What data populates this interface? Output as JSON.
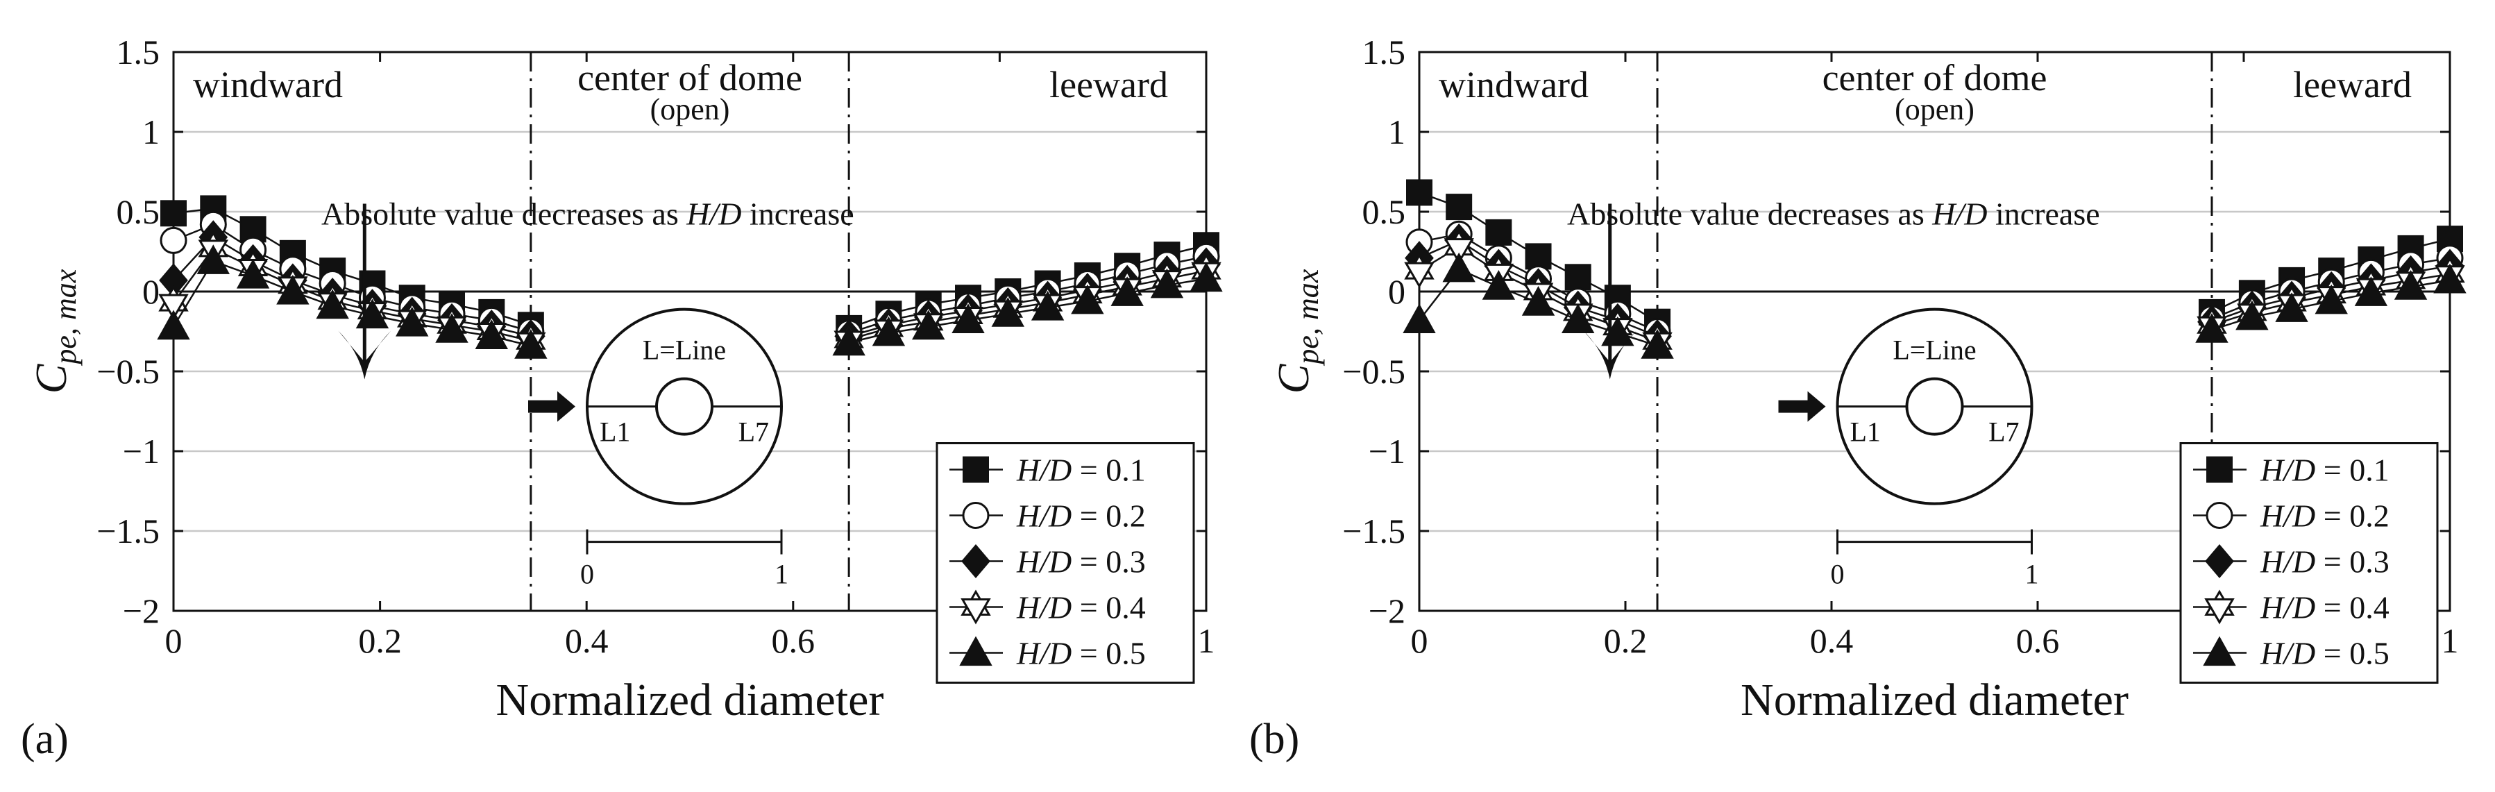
{
  "chart_data": [
    {
      "panel_label": "(a)",
      "type": "line",
      "xlabel": "Normalized diameter",
      "ylabel": "C",
      "ylabel_sub": "pe, max",
      "xlim": [
        0,
        1
      ],
      "ylim": [
        -2,
        1.5
      ],
      "xticks": [
        0,
        0.2,
        0.4,
        0.6,
        0.8,
        1
      ],
      "xtick_labels": [
        "0",
        "0.2",
        "0.4",
        "0.6",
        "0.8",
        "1"
      ],
      "yticks": [
        1.5,
        1,
        0.5,
        0,
        -0.5,
        -1,
        -1.5,
        -2
      ],
      "ytick_labels": [
        "1.5",
        "1",
        "0.5",
        "0",
        "−0.5",
        "−1",
        "−1.5",
        "−2"
      ],
      "grid": "horizontal",
      "zero_line": true,
      "dividers": [
        0.346,
        0.654
      ],
      "regions": {
        "windward": "windward",
        "center": "center of dome",
        "center_sub": "(open)",
        "leeward": "leeward"
      },
      "annotation": {
        "text_before": "Absolute value decreases as ",
        "text_italic": "H/D",
        "text_after": " increase",
        "arrow_x": 0.185,
        "arrow_from": 0.55,
        "arrow_to": -0.55
      },
      "inset": {
        "title": "L=Line",
        "left_line": "L1",
        "right_line": "L7",
        "scale_min": "0",
        "scale_max": "1"
      },
      "legend_prefix": "H/D",
      "x_windward": [
        0,
        0.0385,
        0.077,
        0.1155,
        0.154,
        0.1925,
        0.231,
        0.2695,
        0.308,
        0.346
      ],
      "x_leeward": [
        0.654,
        0.6925,
        0.731,
        0.7695,
        0.808,
        0.8465,
        0.885,
        0.9235,
        0.962,
        1.0
      ],
      "series": [
        {
          "name": "0.1",
          "marker": "square",
          "windward": [
            0.49,
            0.52,
            0.39,
            0.24,
            0.13,
            0.05,
            -0.04,
            -0.08,
            -0.13,
            -0.21
          ],
          "leeward": [
            -0.23,
            -0.14,
            -0.08,
            -0.04,
            0.0,
            0.05,
            0.1,
            0.16,
            0.23,
            0.29
          ]
        },
        {
          "name": "0.2",
          "marker": "circle",
          "windward": [
            0.32,
            0.42,
            0.26,
            0.14,
            0.05,
            -0.04,
            -0.1,
            -0.14,
            -0.18,
            -0.25
          ],
          "leeward": [
            -0.26,
            -0.18,
            -0.13,
            -0.09,
            -0.04,
            0.0,
            0.05,
            0.11,
            0.17,
            0.22
          ]
        },
        {
          "name": "0.3",
          "marker": "diamond",
          "windward": [
            0.07,
            0.34,
            0.19,
            0.07,
            -0.02,
            -0.09,
            -0.14,
            -0.18,
            -0.22,
            -0.28
          ],
          "leeward": [
            -0.28,
            -0.21,
            -0.16,
            -0.12,
            -0.08,
            -0.04,
            0.01,
            0.06,
            0.12,
            0.17
          ]
        },
        {
          "name": "0.4",
          "marker": "star",
          "windward": [
            -0.07,
            0.27,
            0.15,
            0.04,
            -0.06,
            -0.12,
            -0.17,
            -0.21,
            -0.25,
            -0.31
          ],
          "leeward": [
            -0.3,
            -0.23,
            -0.19,
            -0.15,
            -0.11,
            -0.07,
            -0.02,
            0.03,
            0.08,
            0.13
          ]
        },
        {
          "name": "0.5",
          "marker": "triangle",
          "windward": [
            -0.22,
            0.19,
            0.1,
            0.0,
            -0.09,
            -0.15,
            -0.2,
            -0.24,
            -0.28,
            -0.34
          ],
          "leeward": [
            -0.32,
            -0.26,
            -0.22,
            -0.18,
            -0.14,
            -0.1,
            -0.06,
            -0.01,
            0.04,
            0.08
          ]
        }
      ]
    },
    {
      "panel_label": "(b)",
      "type": "line",
      "xlabel": "Normalized diameter",
      "ylabel": "C",
      "ylabel_sub": "pe, max",
      "xlim": [
        0,
        1
      ],
      "ylim": [
        -2,
        1.5
      ],
      "xticks": [
        0,
        0.2,
        0.4,
        0.6,
        0.8,
        1
      ],
      "xtick_labels": [
        "0",
        "0.2",
        "0.4",
        "0.6",
        "0.8",
        "1"
      ],
      "yticks": [
        1.5,
        1,
        0.5,
        0,
        -0.5,
        -1,
        -1.5,
        -2
      ],
      "ytick_labels": [
        "1.5",
        "1",
        "0.5",
        "0",
        "−0.5",
        "−1",
        "−1.5",
        "−2"
      ],
      "grid": "horizontal",
      "zero_line": true,
      "dividers": [
        0.231,
        0.769
      ],
      "regions": {
        "windward": "windward",
        "center": "center of dome",
        "center_sub": "(open)",
        "leeward": "leeward"
      },
      "annotation": {
        "text_before": "Absolute value decreases as ",
        "text_italic": "H/D",
        "text_after": " increase",
        "arrow_x": 0.185,
        "arrow_from": 0.55,
        "arrow_to": -0.55
      },
      "inset": {
        "title": "L=Line",
        "left_line": "L1",
        "right_line": "L7",
        "scale_min": "0",
        "scale_max": "1"
      },
      "legend_prefix": "H/D",
      "x_windward": [
        0,
        0.0385,
        0.077,
        0.1155,
        0.154,
        0.1925,
        0.231
      ],
      "x_leeward": [
        0.769,
        0.808,
        0.8465,
        0.885,
        0.9235,
        0.962,
        1.0
      ],
      "series": [
        {
          "name": "0.1",
          "marker": "square",
          "windward": [
            0.62,
            0.53,
            0.37,
            0.22,
            0.09,
            -0.04,
            -0.19
          ],
          "leeward": [
            -0.13,
            -0.01,
            0.07,
            0.13,
            0.2,
            0.27,
            0.33
          ]
        },
        {
          "name": "0.2",
          "marker": "circle",
          "windward": [
            0.31,
            0.36,
            0.21,
            0.08,
            -0.06,
            -0.14,
            -0.25
          ],
          "leeward": [
            -0.17,
            -0.07,
            0.0,
            0.06,
            0.12,
            0.17,
            0.21
          ]
        },
        {
          "name": "0.3",
          "marker": "diamond",
          "windward": [
            0.21,
            0.32,
            0.16,
            0.04,
            -0.1,
            -0.18,
            -0.28
          ],
          "leeward": [
            -0.19,
            -0.1,
            -0.04,
            0.02,
            0.07,
            0.12,
            0.16
          ]
        },
        {
          "name": "0.4",
          "marker": "star",
          "windward": [
            0.13,
            0.28,
            0.12,
            0.0,
            -0.13,
            -0.22,
            -0.31
          ],
          "leeward": [
            -0.21,
            -0.13,
            -0.07,
            -0.02,
            0.03,
            0.07,
            0.11
          ]
        },
        {
          "name": "0.5",
          "marker": "triangle",
          "windward": [
            -0.18,
            0.14,
            0.03,
            -0.07,
            -0.18,
            -0.26,
            -0.34
          ],
          "leeward": [
            -0.24,
            -0.16,
            -0.11,
            -0.06,
            -0.01,
            0.03,
            0.07
          ]
        }
      ]
    }
  ]
}
